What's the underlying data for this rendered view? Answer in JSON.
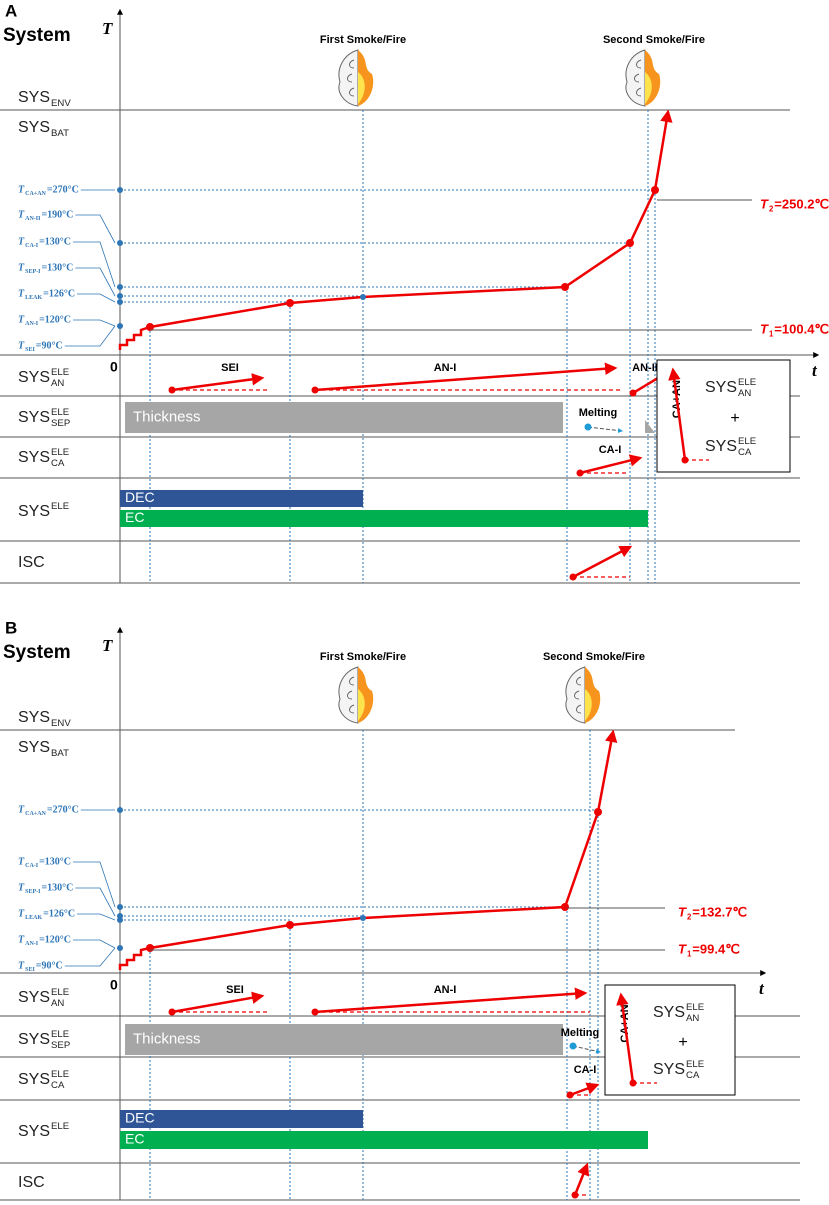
{
  "panels": [
    {
      "letter": "A",
      "title": "System",
      "axis_y": "T",
      "axis_x": "t",
      "origin": "0",
      "events": [
        "First Smoke/Fire",
        "Second Smoke/Fire"
      ],
      "rows": [
        {
          "base": "SYS",
          "sub": "ENV"
        },
        {
          "base": "SYS",
          "sub": "BAT"
        },
        {
          "base": "SYS",
          "sup": "ELE",
          "sub": "AN"
        },
        {
          "base": "SYS",
          "sup": "ELE",
          "sub": "SEP"
        },
        {
          "base": "SYS",
          "sup": "ELE",
          "sub": "CA"
        },
        {
          "base": "SYS",
          "sup": "ELE"
        },
        {
          "base": "ISC"
        }
      ],
      "temperatures": [
        {
          "base": "T",
          "sub": "CA+AN",
          "value": "=270°C"
        },
        {
          "base": "T",
          "sub": "AN-II",
          "value": "=190°C"
        },
        {
          "base": "T",
          "sub": "CA-I",
          "value": "=130°C"
        },
        {
          "base": "T",
          "sub": "SEP-I",
          "value": "=130°C"
        },
        {
          "base": "T",
          "sub": "LEAK",
          "value": "=126°C"
        },
        {
          "base": "T",
          "sub": "AN-I",
          "value": "=120°C"
        },
        {
          "base": "T",
          "sub": "SEI",
          "value": "=90°C"
        }
      ],
      "t2": {
        "base": "T",
        "sub": "2",
        "value": "=250.2℃"
      },
      "t1": {
        "base": "T",
        "sub": "1",
        "value": "=100.4℃"
      },
      "processes": [
        "SEI",
        "AN-I",
        "AN-II",
        "Melting",
        "CA-I"
      ],
      "bars": [
        "Thickness",
        "DEC",
        "EC"
      ],
      "legend": {
        "label": "CA+AN",
        "top": {
          "base": "SYS",
          "sup": "ELE",
          "sub": "AN"
        },
        "plus": "+",
        "bottom": {
          "base": "SYS",
          "sup": "ELE",
          "sub": "CA"
        }
      }
    },
    {
      "letter": "B",
      "title": "System",
      "axis_y": "T",
      "axis_x": "t",
      "origin": "0",
      "events": [
        "First Smoke/Fire",
        "Second Smoke/Fire"
      ],
      "rows": [
        {
          "base": "SYS",
          "sub": "ENV"
        },
        {
          "base": "SYS",
          "sub": "BAT"
        },
        {
          "base": "SYS",
          "sup": "ELE",
          "sub": "AN"
        },
        {
          "base": "SYS",
          "sup": "ELE",
          "sub": "SEP"
        },
        {
          "base": "SYS",
          "sup": "ELE",
          "sub": "CA"
        },
        {
          "base": "SYS",
          "sup": "ELE"
        },
        {
          "base": "ISC"
        }
      ],
      "temperatures": [
        {
          "base": "T",
          "sub": "CA+AN",
          "value": "=270°C"
        },
        {
          "base": "T",
          "sub": "CA-I",
          "value": "=130°C"
        },
        {
          "base": "T",
          "sub": "SEP-I",
          "value": "=130°C"
        },
        {
          "base": "T",
          "sub": "LEAK",
          "value": "=126°C"
        },
        {
          "base": "T",
          "sub": "AN-I",
          "value": "=120°C"
        },
        {
          "base": "T",
          "sub": "SEI",
          "value": "=90°C"
        }
      ],
      "t2": {
        "base": "T",
        "sub": "2",
        "value": "=132.7℃"
      },
      "t1": {
        "base": "T",
        "sub": "1",
        "value": "=99.4℃"
      },
      "processes": [
        "SEI",
        "AN-I",
        "Melting",
        "CA-I"
      ],
      "bars": [
        "Thickness",
        "DEC",
        "EC"
      ],
      "legend": {
        "label": "CA+AN",
        "top": {
          "base": "SYS",
          "sup": "ELE",
          "sub": "AN"
        },
        "plus": "+",
        "bottom": {
          "base": "SYS",
          "sup": "ELE",
          "sub": "CA"
        }
      }
    }
  ]
}
